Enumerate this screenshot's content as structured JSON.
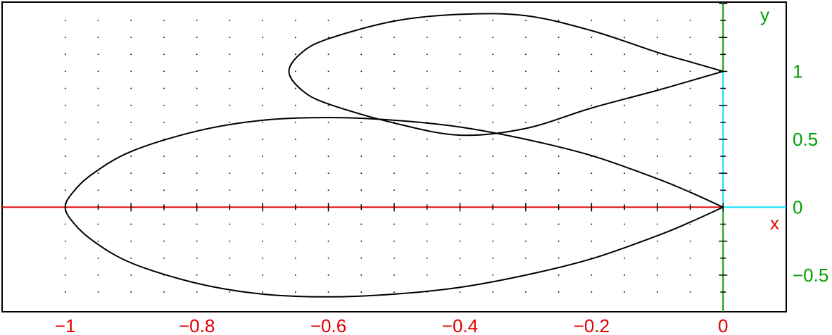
{
  "chart_data": {
    "type": "line",
    "title": "",
    "xlabel": "x",
    "ylabel": "y",
    "xlim": [
      -1.096,
      0.096
    ],
    "ylim": [
      -0.77,
      1.51
    ],
    "grid": "dots",
    "x_ticks": [
      -1,
      -0.8,
      -0.6,
      -0.4,
      -0.2,
      0
    ],
    "x_tick_labels": [
      "−1",
      "−0.8",
      "−0.6",
      "−0.4",
      "−0.2",
      "0"
    ],
    "y_ticks": [
      -0.5,
      0,
      0.5,
      1
    ],
    "y_tick_labels": [
      "−0.5",
      "0",
      "0.5",
      "1"
    ],
    "series": [
      {
        "curve": "large-loop",
        "x": [
          0,
          -0.05,
          -0.1,
          -0.2,
          -0.3,
          -0.4,
          -0.5,
          -0.6,
          -0.7,
          -0.8,
          -0.9,
          -0.96,
          -0.99,
          -1,
          -0.99,
          -0.96,
          -0.9,
          -0.8,
          -0.7,
          -0.6,
          -0.5,
          -0.4,
          -0.3,
          -0.2,
          -0.1,
          -0.05,
          0
        ],
        "y": [
          0,
          0.11,
          0.21,
          0.38,
          0.5,
          0.59,
          0.64,
          0.66,
          0.64,
          0.56,
          0.41,
          0.24,
          0.1,
          0,
          -0.1,
          -0.24,
          -0.41,
          -0.56,
          -0.64,
          -0.66,
          -0.64,
          -0.59,
          -0.5,
          -0.38,
          -0.21,
          -0.11,
          0
        ]
      },
      {
        "curve": "small-loop",
        "x": [
          0,
          -0.05,
          -0.1,
          -0.2,
          -0.3,
          -0.4,
          -0.5,
          -0.6,
          -0.64,
          -0.66,
          -0.64,
          -0.6,
          -0.5,
          -0.4,
          -0.3,
          -0.2,
          -0.1,
          -0.05,
          0
        ],
        "y": [
          1,
          0.93,
          0.86,
          0.73,
          0.58,
          0.53,
          0.62,
          0.76,
          0.86,
          1,
          1.14,
          1.24,
          1.37,
          1.42,
          1.41,
          1.3,
          1.14,
          1.07,
          1
        ]
      }
    ],
    "colors": {
      "x_axis": "#e00000",
      "y_axis": "#00a000",
      "axis_highlight": "#00e0ff",
      "curve": "#000000",
      "grid": "#000000",
      "frame": "#000000"
    }
  }
}
